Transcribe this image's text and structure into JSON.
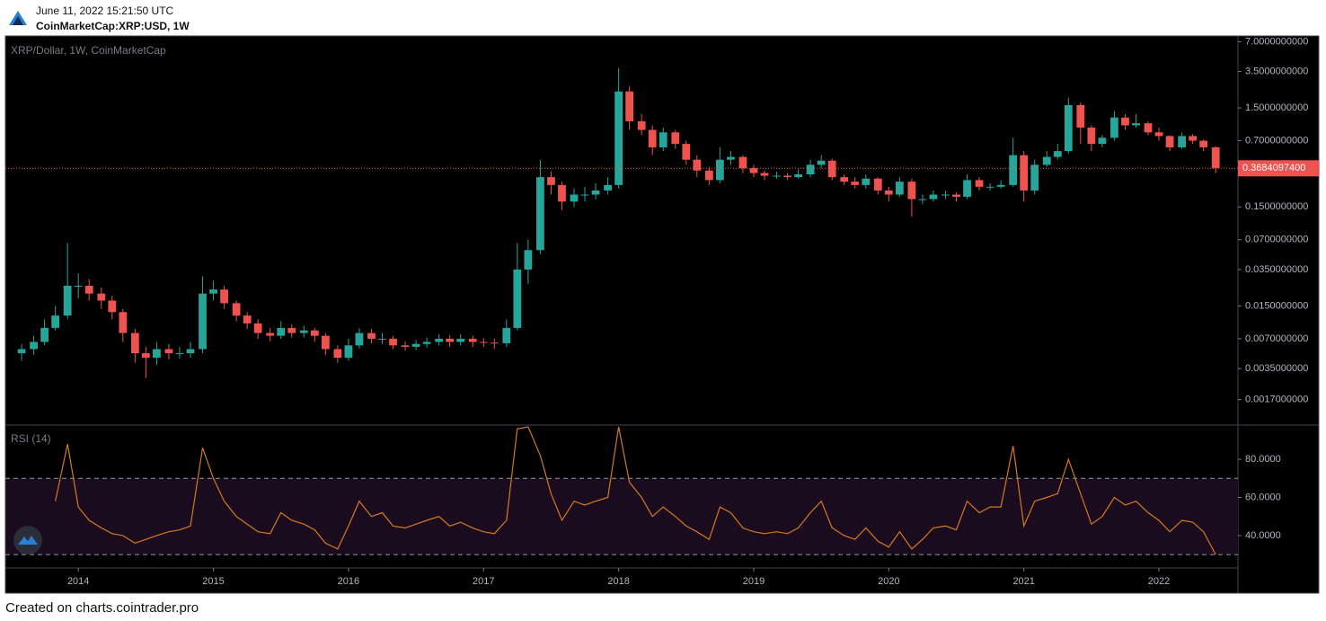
{
  "header": {
    "timestamp": "June 11, 2022 15:21:50 UTC",
    "symbol": "CoinMarketCap:XRP:USD, 1W"
  },
  "footer": "Created on charts.cointrader.pro",
  "chart_data": {
    "type": "candlestick",
    "legend": "XRP/Dollar, 1W, CoinMarketCap",
    "log_scale": true,
    "up_color": "#26a69a",
    "down_color": "#ef5350",
    "xlim": [
      2013.46,
      2022.585
    ],
    "xticks": [
      2014,
      2015,
      2016,
      2017,
      2018,
      2019,
      2020,
      2021,
      2022
    ],
    "ylim": [
      0.00096,
      8.0
    ],
    "yticks": [
      {
        "value": 7,
        "label": "7.0000000000"
      },
      {
        "value": 3.5,
        "label": "3.5000000000"
      },
      {
        "value": 1.5,
        "label": "1.5000000000"
      },
      {
        "value": 0.7,
        "label": "0.7000000000"
      },
      {
        "value": 0.15,
        "label": "0.1500000000"
      },
      {
        "value": 0.07,
        "label": "0.0700000000"
      },
      {
        "value": 0.035,
        "label": "0.0350000000"
      },
      {
        "value": 0.015,
        "label": "0.0150000000"
      },
      {
        "value": 0.007,
        "label": "0.0070000000"
      },
      {
        "value": 0.0035,
        "label": "0.0035000000"
      },
      {
        "value": 0.0017,
        "label": "0.0017000000"
      }
    ],
    "last_price": {
      "value": 0.36840974,
      "label": "0.3684097400"
    },
    "x": [
      2013.58,
      2013.67,
      2013.75,
      2013.83,
      2013.92,
      2014.0,
      2014.08,
      2014.17,
      2014.25,
      2014.33,
      2014.42,
      2014.5,
      2014.58,
      2014.67,
      2014.75,
      2014.83,
      2014.92,
      2015.0,
      2015.08,
      2015.17,
      2015.25,
      2015.33,
      2015.42,
      2015.5,
      2015.58,
      2015.67,
      2015.75,
      2015.83,
      2015.92,
      2016.0,
      2016.08,
      2016.17,
      2016.25,
      2016.33,
      2016.42,
      2016.5,
      2016.58,
      2016.67,
      2016.75,
      2016.83,
      2016.92,
      2017.0,
      2017.08,
      2017.17,
      2017.25,
      2017.33,
      2017.42,
      2017.5,
      2017.58,
      2017.67,
      2017.75,
      2017.83,
      2017.92,
      2018.0,
      2018.08,
      2018.17,
      2018.25,
      2018.33,
      2018.42,
      2018.5,
      2018.58,
      2018.67,
      2018.75,
      2018.83,
      2018.92,
      2019.0,
      2019.08,
      2019.17,
      2019.25,
      2019.33,
      2019.42,
      2019.5,
      2019.58,
      2019.67,
      2019.75,
      2019.83,
      2019.92,
      2020.0,
      2020.08,
      2020.17,
      2020.25,
      2020.33,
      2020.42,
      2020.5,
      2020.58,
      2020.67,
      2020.75,
      2020.83,
      2020.92,
      2021.0,
      2021.08,
      2021.17,
      2021.25,
      2021.33,
      2021.42,
      2021.5,
      2021.58,
      2021.67,
      2021.75,
      2021.83,
      2021.92,
      2022.0,
      2022.08,
      2022.17,
      2022.25,
      2022.33,
      2022.42
    ],
    "open": [
      0.005,
      0.0055,
      0.0065,
      0.009,
      0.012,
      0.024,
      0.024,
      0.02,
      0.017,
      0.013,
      0.008,
      0.005,
      0.0045,
      0.0055,
      0.005,
      0.005,
      0.0055,
      0.02,
      0.022,
      0.016,
      0.012,
      0.01,
      0.008,
      0.0075,
      0.009,
      0.008,
      0.0085,
      0.0075,
      0.0055,
      0.0045,
      0.006,
      0.008,
      0.007,
      0.007,
      0.006,
      0.0058,
      0.0062,
      0.0065,
      0.007,
      0.0065,
      0.007,
      0.0065,
      0.0064,
      0.0063,
      0.009,
      0.035,
      0.055,
      0.3,
      0.25,
      0.17,
      0.2,
      0.2,
      0.22,
      0.25,
      2.2,
      1.1,
      0.9,
      0.6,
      0.85,
      0.65,
      0.45,
      0.35,
      0.28,
      0.45,
      0.48,
      0.37,
      0.33,
      0.31,
      0.31,
      0.3,
      0.32,
      0.4,
      0.44,
      0.3,
      0.27,
      0.25,
      0.29,
      0.22,
      0.2,
      0.27,
      0.18,
      0.18,
      0.2,
      0.2,
      0.19,
      0.28,
      0.24,
      0.24,
      0.25,
      0.5,
      0.22,
      0.4,
      0.48,
      0.55,
      1.6,
      0.95,
      0.65,
      0.75,
      1.2,
      1.0,
      1.05,
      0.85,
      0.78,
      0.6,
      0.78,
      0.7,
      0.6
    ],
    "high": [
      0.0062,
      0.0075,
      0.011,
      0.015,
      0.065,
      0.032,
      0.028,
      0.023,
      0.019,
      0.014,
      0.0088,
      0.0058,
      0.0065,
      0.0062,
      0.0058,
      0.0065,
      0.03,
      0.027,
      0.024,
      0.017,
      0.013,
      0.011,
      0.009,
      0.0105,
      0.0098,
      0.0095,
      0.009,
      0.008,
      0.006,
      0.007,
      0.009,
      0.0088,
      0.008,
      0.0075,
      0.0066,
      0.0068,
      0.0072,
      0.0078,
      0.0076,
      0.0078,
      0.0075,
      0.0071,
      0.007,
      0.011,
      0.065,
      0.07,
      0.45,
      0.34,
      0.27,
      0.23,
      0.24,
      0.26,
      0.3,
      3.8,
      2.5,
      1.3,
      1.0,
      0.95,
      0.9,
      0.7,
      0.5,
      0.38,
      0.6,
      0.55,
      0.5,
      0.4,
      0.35,
      0.34,
      0.33,
      0.36,
      0.45,
      0.5,
      0.46,
      0.32,
      0.3,
      0.32,
      0.3,
      0.24,
      0.3,
      0.29,
      0.2,
      0.22,
      0.22,
      0.21,
      0.32,
      0.3,
      0.26,
      0.28,
      0.75,
      0.55,
      0.45,
      0.55,
      0.65,
      1.9,
      1.7,
      1.0,
      0.8,
      1.4,
      1.3,
      1.3,
      1.1,
      0.95,
      0.8,
      0.85,
      0.82,
      0.72,
      0.62
    ],
    "low": [
      0.0042,
      0.0048,
      0.006,
      0.0085,
      0.011,
      0.018,
      0.017,
      0.014,
      0.011,
      0.0065,
      0.004,
      0.0028,
      0.0038,
      0.0043,
      0.0044,
      0.0045,
      0.005,
      0.017,
      0.014,
      0.0105,
      0.0088,
      0.007,
      0.0066,
      0.007,
      0.0072,
      0.0072,
      0.0065,
      0.0048,
      0.004,
      0.0042,
      0.0056,
      0.0063,
      0.0062,
      0.0055,
      0.0053,
      0.0054,
      0.0057,
      0.006,
      0.0058,
      0.006,
      0.0058,
      0.0058,
      0.0055,
      0.0058,
      0.0085,
      0.025,
      0.05,
      0.2,
      0.14,
      0.15,
      0.17,
      0.18,
      0.2,
      0.23,
      0.9,
      0.8,
      0.5,
      0.55,
      0.58,
      0.4,
      0.3,
      0.25,
      0.26,
      0.4,
      0.33,
      0.3,
      0.28,
      0.29,
      0.28,
      0.29,
      0.3,
      0.37,
      0.28,
      0.25,
      0.23,
      0.23,
      0.2,
      0.17,
      0.19,
      0.12,
      0.16,
      0.17,
      0.18,
      0.17,
      0.18,
      0.22,
      0.22,
      0.23,
      0.24,
      0.17,
      0.2,
      0.38,
      0.45,
      0.52,
      0.65,
      0.55,
      0.6,
      0.7,
      0.9,
      0.95,
      0.8,
      0.7,
      0.55,
      0.58,
      0.65,
      0.55,
      0.33
    ],
    "close": [
      0.0055,
      0.0065,
      0.009,
      0.012,
      0.024,
      0.024,
      0.02,
      0.017,
      0.013,
      0.008,
      0.005,
      0.0045,
      0.0055,
      0.005,
      0.005,
      0.0055,
      0.02,
      0.022,
      0.016,
      0.012,
      0.01,
      0.008,
      0.0075,
      0.009,
      0.008,
      0.0085,
      0.0075,
      0.0055,
      0.0045,
      0.006,
      0.008,
      0.007,
      0.007,
      0.006,
      0.0058,
      0.0062,
      0.0065,
      0.007,
      0.0065,
      0.007,
      0.0065,
      0.0064,
      0.0063,
      0.009,
      0.035,
      0.055,
      0.3,
      0.25,
      0.17,
      0.2,
      0.2,
      0.22,
      0.25,
      2.2,
      1.1,
      0.9,
      0.6,
      0.85,
      0.65,
      0.45,
      0.35,
      0.28,
      0.45,
      0.48,
      0.37,
      0.33,
      0.31,
      0.31,
      0.3,
      0.32,
      0.4,
      0.44,
      0.3,
      0.27,
      0.25,
      0.29,
      0.22,
      0.2,
      0.27,
      0.18,
      0.18,
      0.2,
      0.2,
      0.19,
      0.28,
      0.24,
      0.24,
      0.25,
      0.5,
      0.22,
      0.4,
      0.48,
      0.55,
      1.6,
      0.95,
      0.65,
      0.75,
      1.2,
      1.0,
      1.05,
      0.85,
      0.78,
      0.6,
      0.78,
      0.7,
      0.6,
      0.37
    ],
    "rsi": {
      "title": "RSI (14)",
      "color": "#d47a22",
      "ylim": [
        23,
        97
      ],
      "yticks": [
        {
          "value": 80,
          "label": "80.0000"
        },
        {
          "value": 60,
          "label": "60.0000"
        },
        {
          "value": 40,
          "label": "40.0000"
        }
      ],
      "bands": [
        30,
        70
      ],
      "values": [
        null,
        null,
        null,
        58,
        88,
        55,
        48,
        44,
        41,
        40,
        36,
        38,
        40,
        42,
        43,
        45,
        86,
        70,
        58,
        50,
        46,
        42,
        41,
        52,
        48,
        46,
        43,
        36,
        33,
        45,
        58,
        50,
        52,
        45,
        44,
        46,
        48,
        50,
        45,
        47,
        44,
        42,
        41,
        48,
        96,
        97,
        82,
        62,
        48,
        58,
        56,
        58,
        60,
        97,
        68,
        60,
        50,
        55,
        50,
        45,
        42,
        38,
        55,
        52,
        44,
        42,
        41,
        42,
        41,
        44,
        52,
        58,
        44,
        40,
        38,
        44,
        37,
        34,
        42,
        33,
        38,
        44,
        45,
        43,
        58,
        52,
        55,
        55,
        87,
        45,
        58,
        60,
        62,
        80,
        62,
        46,
        50,
        60,
        56,
        58,
        52,
        48,
        42,
        48,
        47,
        42,
        30
      ]
    }
  }
}
